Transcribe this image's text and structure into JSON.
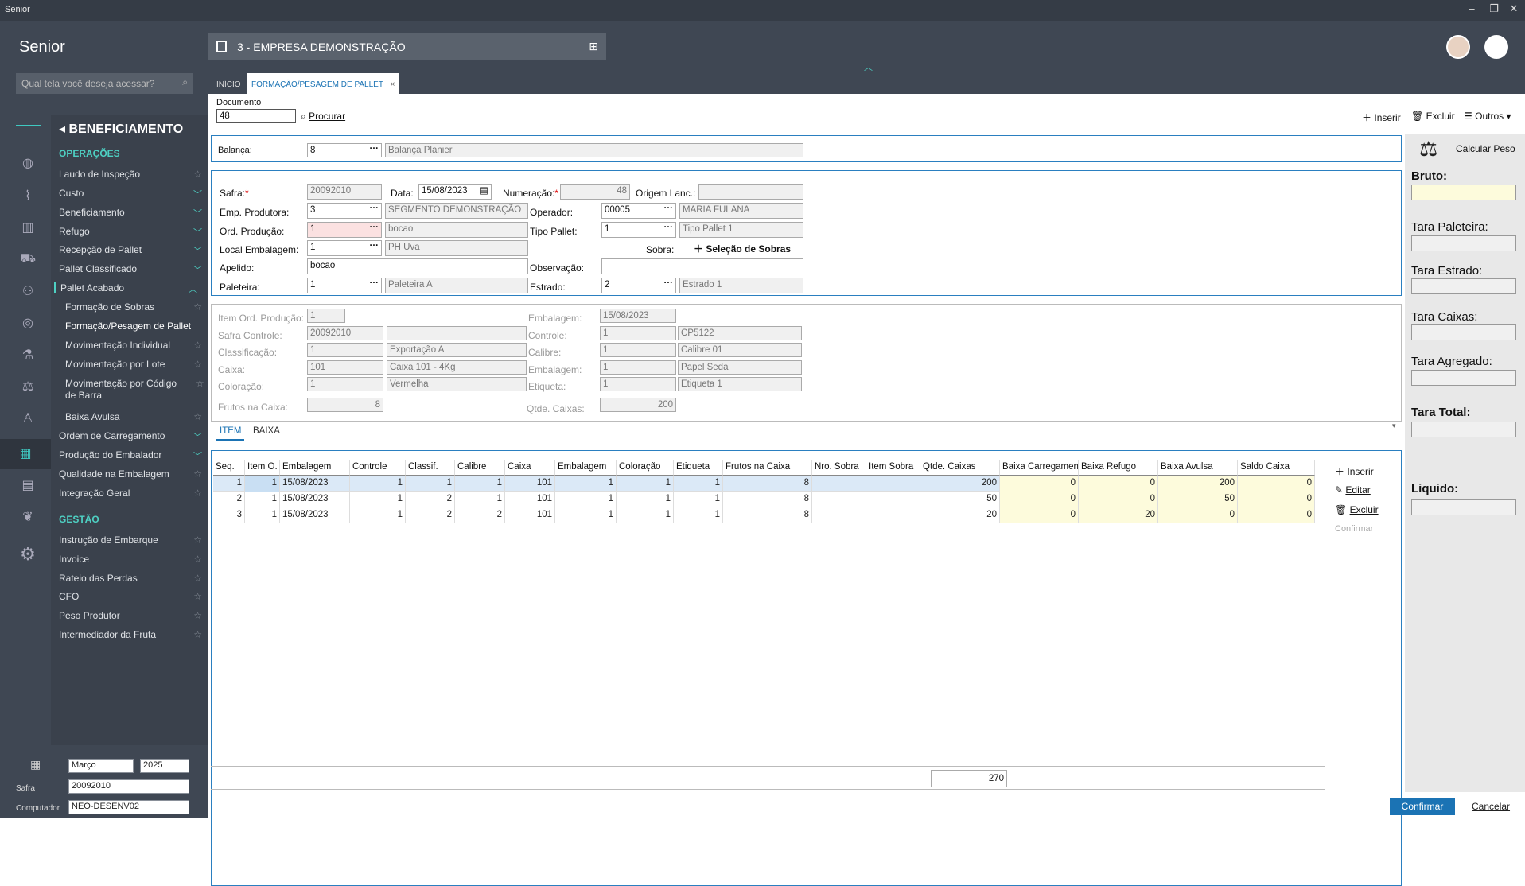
{
  "window": {
    "title": "Senior",
    "minimize": "–",
    "restore": "❐",
    "close": "✕"
  },
  "app": {
    "logo": "Senior",
    "company": "3 - EMPRESA DEMONSTRAÇÃO"
  },
  "search": {
    "placeholder": "Qual tela você deseja acessar?"
  },
  "menu": {
    "title": "BENEFICIAMENTO",
    "sections": {
      "operacoes": "OPERAÇÕES",
      "gestao": "GESTÃO"
    },
    "items": [
      "Laudo de Inspeção",
      "Custo",
      "Beneficiamento",
      "Refugo",
      "Recepção de Pallet",
      "Pallet Classificado",
      "Pallet Acabado",
      "Formação de Sobras",
      "Formação/Pesagem de Pallet",
      "Movimentação Individual",
      "Movimentação por Lote",
      "Movimentação por Código de Barra",
      "Baixa Avulsa",
      "Ordem de Carregamento",
      "Produção do Embalador",
      "Qualidade na Embalagem",
      "Integração Geral",
      "Instrução de Embarque",
      "Invoice",
      "Rateio das Perdas",
      "CFO",
      "Peso Produtor",
      "Intermediador da Fruta"
    ]
  },
  "bottom": {
    "month": "Março",
    "year": "2025",
    "safra_label": "Safra",
    "safra": "20092010",
    "computador_label": "Computador",
    "computador": "NEO-DESENV02"
  },
  "tabs": [
    "INÍCIO",
    "FORMAÇÃO/PESAGEM DE PALLET"
  ],
  "toolbar": {
    "documento_label": "Documento",
    "documento": "48",
    "procurar": "Procurar",
    "inserir": "Inserir",
    "excluir": "Excluir",
    "outros": "Outros"
  },
  "balanca": {
    "label": "Balança:",
    "code": "8",
    "desc": "Balança Planier"
  },
  "main": {
    "safra_l": "Safra:",
    "safra": "20092010",
    "data_l": "Data:",
    "data": "15/08/2023",
    "numeracao_l": "Numeração:",
    "numeracao": "48",
    "origem_l": "Origem Lanc.:",
    "emp_l": "Emp. Produtora:",
    "emp": "3",
    "emp_d": "SEGMENTO DEMONSTRAÇÃO",
    "operador_l": "Operador:",
    "operador": "00005",
    "operador_d": "MARIA FULANA",
    "ord_l": "Ord. Produção:",
    "ord": "1",
    "ord_d": "bocao",
    "tipo_l": "Tipo Pallet:",
    "tipo": "1",
    "tipo_d": "Tipo Pallet 1",
    "local_l": "Local Embalagem:",
    "local": "1",
    "local_d": "PH Uva",
    "sobra_l": "Sobra:",
    "selecao": "Seleção de Sobras",
    "apelido_l": "Apelido:",
    "apelido": "bocao",
    "obs_l": "Observação:",
    "paleteira_l": "Paleteira:",
    "paleteira": "1",
    "paleteira_d": "Paleteira A",
    "estado_l": "Estrado:",
    "estado": "2",
    "estado_d": "Estrado 1"
  },
  "item": {
    "ordprod_l": "Item Ord. Produção:",
    "ordprod": "1",
    "embalagem_l": "Embalagem:",
    "embalagem": "15/08/2023",
    "safractrl_l": "Safra Controle:",
    "safractrl": "20092010",
    "controle_l": "Controle:",
    "controle": "1",
    "controle_d": "CP5122",
    "class_l": "Classificação:",
    "class": "1",
    "class_d": "Exportação A",
    "calibre_l": "Calibre:",
    "calibre": "1",
    "calibre_d": "Calibre 01",
    "caixa_l": "Caixa:",
    "caixa": "101",
    "caixa_d": "Caixa 101 - 4Kg",
    "emb_l": "Embalagem:",
    "emb": "1",
    "emb_d": "Papel Seda",
    "color_l": "Coloração:",
    "color": "1",
    "color_d": "Vermelha",
    "etiq_l": "Etiqueta:",
    "etiq": "1",
    "etiq_d": "Etiqueta 1",
    "frutos_l": "Frutos na Caixa:",
    "frutos": "8",
    "qtde_l": "Qtde. Caixas:",
    "qtde": "200"
  },
  "subtabs": [
    "ITEM",
    "BAIXA"
  ],
  "grid": {
    "headers": [
      "Seq.",
      "Item O.",
      "Embalagem",
      "Controle",
      "Classif.",
      "Calibre",
      "Caixa",
      "Embalagem",
      "Coloração",
      "Etiqueta",
      "Frutos na Caixa",
      "Nro. Sobra",
      "Item Sobra",
      "Qtde. Caixas",
      "Baixa Carregamento",
      "Baixa Refugo",
      "Baixa Avulsa",
      "Saldo Caixa"
    ],
    "rows": [
      [
        "1",
        "1",
        "15/08/2023",
        "1",
        "1",
        "1",
        "101",
        "1",
        "1",
        "1",
        "8",
        "",
        "",
        "200",
        "0",
        "0",
        "200",
        "0"
      ],
      [
        "2",
        "1",
        "15/08/2023",
        "1",
        "2",
        "1",
        "101",
        "1",
        "1",
        "1",
        "8",
        "",
        "",
        "50",
        "0",
        "0",
        "50",
        "0"
      ],
      [
        "3",
        "1",
        "15/08/2023",
        "1",
        "2",
        "2",
        "101",
        "1",
        "1",
        "1",
        "8",
        "",
        "",
        "20",
        "0",
        "20",
        "0",
        "0"
      ]
    ],
    "total": "270"
  },
  "gridbtns": {
    "inserir": "Inserir",
    "editar": "Editar",
    "excluir": "Excluir",
    "confirmar": "Confirmar"
  },
  "right": {
    "calcular": "Calcular Peso",
    "bruto": "Bruto:",
    "paleteira": "Tara Paleteira:",
    "estrado": "Tara Estrado:",
    "caixas": "Tara Caixas:",
    "agregado": "Tara Agregado:",
    "total": "Tara Total:",
    "liquido": "Liquido:"
  },
  "footer": {
    "confirmar": "Confirmar",
    "cancelar": "Cancelar"
  }
}
